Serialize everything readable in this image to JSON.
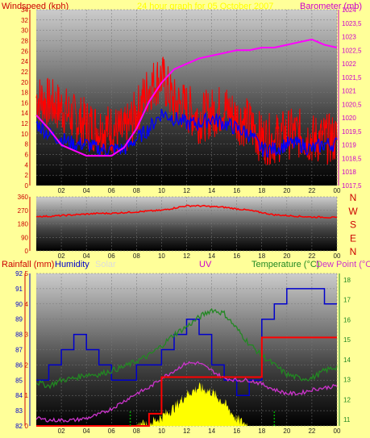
{
  "header": {
    "wind_label": "Windspeed (kph)",
    "title": "24 hour graph for 05 October 2007",
    "baro_label": "Barometer (mb)"
  },
  "wind_axis": [
    "34",
    "32",
    "30",
    "28",
    "26",
    "24",
    "22",
    "20",
    "18",
    "16",
    "14",
    "12",
    "10",
    "8",
    "6",
    "4",
    "2",
    "0"
  ],
  "baro_axis": [
    "1024",
    "1023,5",
    "1023",
    "1022,5",
    "1022",
    "1021,5",
    "1021",
    "1020,5",
    "1020",
    "1019,5",
    "1019",
    "1018,5",
    "1018",
    "1017,5"
  ],
  "dir_axis": [
    "360",
    "270",
    "180",
    "90",
    "0"
  ],
  "compass": [
    "N",
    "W",
    "S",
    "E",
    "N"
  ],
  "hour_ticks": [
    "02",
    "04",
    "06",
    "08",
    "10",
    "12",
    "14",
    "16",
    "18",
    "20",
    "22",
    "00"
  ],
  "bottom": {
    "rain_label": "Rainfall (mm)",
    "humidity_label": "Humidity",
    "solar_label": "Solar",
    "uv_label": "UV",
    "temp_label": "Temperature (°C)",
    "dew_label": "Dew Point (°C)"
  },
  "humidity_axis": [
    "92",
    "91",
    "90",
    "89",
    "88",
    "87",
    "86",
    "85",
    "84",
    "83",
    "82"
  ],
  "rain_axis": [
    "5",
    "4",
    "3",
    "2",
    "1",
    "0"
  ],
  "temp_axis": [
    "18",
    "17",
    "16",
    "15",
    "14",
    "13",
    "12",
    "11"
  ],
  "colors": {
    "background": "#ffff99",
    "wind": "#ff0000",
    "wind_avg": "#0000ff",
    "barometer": "#ff00ff",
    "direction": "#ff0000",
    "humidity": "#0000cc",
    "temperature": "#228822",
    "dew_point": "#cc33cc",
    "rain": "#ff0000",
    "solar": "#ffff00",
    "uv": "#00aa00"
  },
  "chart_data": [
    {
      "type": "line",
      "x_unit": "hour",
      "x": [
        0,
        1,
        2,
        3,
        4,
        5,
        6,
        7,
        8,
        9,
        10,
        11,
        12,
        13,
        14,
        15,
        16,
        17,
        18,
        19,
        20,
        21,
        22,
        23,
        24
      ],
      "series": [
        {
          "values": [
            16,
            15,
            14,
            12,
            11,
            10,
            10,
            9,
            13,
            18,
            20,
            15,
            14,
            12,
            13,
            14,
            12,
            11,
            8,
            8,
            9,
            9,
            8,
            8,
            8
          ]
        },
        {
          "values": [
            12,
            10,
            9,
            8,
            8,
            7,
            7,
            7,
            9,
            11,
            14,
            13,
            12,
            12,
            13,
            12,
            11,
            10,
            7,
            7,
            8,
            8,
            7,
            8,
            8
          ]
        }
      ],
      "baro_values": [
        1020.1,
        1019.6,
        1019.0,
        1018.8,
        1018.6,
        1018.6,
        1018.6,
        1018.9,
        1019.6,
        1020.6,
        1021.3,
        1021.8,
        1022.0,
        1022.2,
        1022.3,
        1022.4,
        1022.5,
        1022.5,
        1022.6,
        1022.6,
        1022.7,
        1022.8,
        1022.9,
        1022.7,
        1022.6
      ],
      "ylim": [
        0,
        34
      ],
      "baro_ylim": [
        1017.5,
        1024
      ]
    },
    {
      "type": "line",
      "x": [
        0,
        1,
        2,
        3,
        4,
        5,
        6,
        7,
        8,
        9,
        10,
        11,
        12,
        13,
        14,
        15,
        16,
        17,
        18,
        19,
        20,
        21,
        22,
        23,
        24
      ],
      "series": [
        {
          "values": [
            230,
            230,
            235,
            240,
            245,
            250,
            250,
            255,
            260,
            265,
            270,
            285,
            300,
            300,
            295,
            290,
            280,
            270,
            255,
            240,
            235,
            230,
            225,
            225,
            220
          ]
        }
      ],
      "ylim": [
        0,
        360
      ]
    },
    {
      "type": "line",
      "x": [
        0,
        1,
        2,
        3,
        4,
        5,
        6,
        7,
        8,
        9,
        10,
        11,
        12,
        13,
        14,
        15,
        16,
        17,
        18,
        19,
        20,
        21,
        22,
        23,
        24
      ],
      "humidity": [
        85,
        86,
        87,
        88,
        87,
        86,
        85,
        85,
        86,
        86,
        87,
        88,
        89,
        88,
        86,
        85,
        84,
        85,
        89,
        90,
        91,
        91,
        91,
        90,
        90
      ],
      "temperature": [
        12.8,
        12.6,
        12.9,
        13.0,
        13.2,
        13.2,
        13.4,
        13.6,
        13.9,
        14.2,
        14.7,
        15.3,
        15.7,
        16.2,
        16.6,
        16.4,
        15.6,
        14.8,
        14.2,
        13.7,
        13.2,
        13.0,
        13.0,
        13.4,
        13.6
      ],
      "dew_point": [
        10.9,
        10.8,
        10.8,
        10.8,
        10.9,
        11.1,
        11.4,
        11.8,
        12.2,
        12.5,
        13.0,
        13.4,
        13.8,
        13.8,
        13.4,
        13.0,
        12.9,
        12.9,
        12.7,
        12.4,
        12.2,
        12.2,
        12.4,
        12.5,
        12.6
      ],
      "rain_total": [
        0,
        0,
        0,
        0,
        0,
        0,
        0,
        0,
        0,
        0.4,
        1.6,
        1.6,
        1.6,
        1.6,
        1.6,
        1.6,
        1.6,
        1.6,
        2.9,
        2.9,
        2.9,
        2.9,
        2.9,
        2.9,
        2.9
      ],
      "solar": [
        0,
        0,
        0,
        0,
        0,
        0,
        0,
        0,
        0,
        2,
        8,
        16,
        28,
        34,
        30,
        20,
        6,
        0,
        0,
        0,
        0,
        0,
        0,
        0,
        0
      ],
      "humidity_ylim": [
        82,
        92
      ],
      "temp_ylim": [
        10.5,
        18.5
      ],
      "rain_ylim": [
        0,
        5
      ]
    }
  ]
}
